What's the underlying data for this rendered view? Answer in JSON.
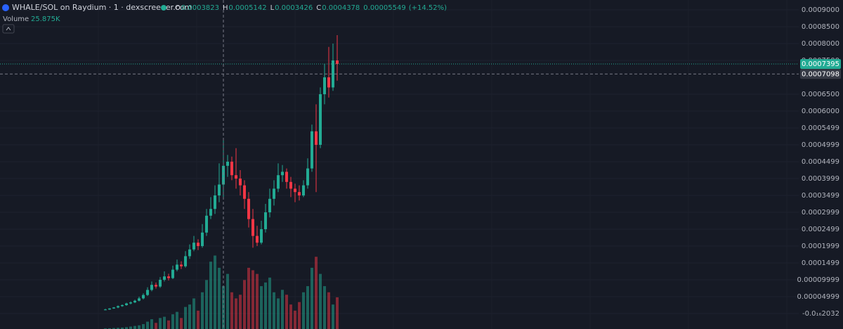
{
  "header": {
    "title": "WHALE/SOL on Raydium · 1 · dexscreener.com",
    "legend_labels": [
      "O",
      "H",
      "L",
      "C"
    ],
    "change": 5.549e-05,
    "change_label": "(+14.52%)",
    "volume_title": "Volume",
    "volume_label": "25.875K"
  },
  "chart_data": {
    "type": "candlestick",
    "ylim": [
      -4.58e-05,
      0.00092917
    ],
    "yticks": [
      {
        "value": 0.0009,
        "label": "0.0009000"
      },
      {
        "value": 0.00085,
        "label": "0.0008500"
      },
      {
        "value": 0.0008,
        "label": "0.0008000"
      },
      {
        "value": 0.00075,
        "label": "0.0007500"
      },
      {
        "value": 0.00065,
        "label": "0.0006500"
      },
      {
        "value": 0.0006,
        "label": "0.0006000"
      },
      {
        "value": 0.0005499,
        "label": "0.0005499"
      },
      {
        "value": 0.0004999,
        "label": "0.0004999"
      },
      {
        "value": 0.0004499,
        "label": "0.0004499"
      },
      {
        "value": 0.0003999,
        "label": "0.0003999"
      },
      {
        "value": 0.0003499,
        "label": "0.0003499"
      },
      {
        "value": 0.0002999,
        "label": "0.0002999"
      },
      {
        "value": 0.0002499,
        "label": "0.0002499"
      },
      {
        "value": 0.0001999,
        "label": "0.0001999"
      },
      {
        "value": 0.0001499,
        "label": "0.0001499"
      },
      {
        "value": 9.999e-05,
        "label": "0.00009999"
      },
      {
        "value": 4.999e-05,
        "label": "0.00004999"
      },
      {
        "value": -2.032e-17,
        "label": "-0.0₁₆2032"
      }
    ],
    "up_color": "#22ab94",
    "down_color": "#f23645",
    "grid": true,
    "last_price": 0.0007395,
    "crosshair_price": 0.0007098,
    "crosshair_index": 28,
    "candles": [
      [
        1.1e-05,
        1.4e-05,
        1e-05,
        1.2e-05
      ],
      [
        1.2e-05,
        1.6e-05,
        1.1e-05,
        1.5e-05
      ],
      [
        1.5e-05,
        1.9e-05,
        1.4e-05,
        1.8e-05
      ],
      [
        1.8e-05,
        2.4e-05,
        1.6e-05,
        2.2e-05
      ],
      [
        2.2e-05,
        2.7e-05,
        2e-05,
        2.5e-05
      ],
      [
        2.5e-05,
        3.2e-05,
        2.3e-05,
        3e-05
      ],
      [
        3e-05,
        3.6e-05,
        2.7e-05,
        3.3e-05
      ],
      [
        3.3e-05,
        4.1e-05,
        3.1e-05,
        3.8e-05
      ],
      [
        3.8e-05,
        5e-05,
        3.6e-05,
        4.5e-05
      ],
      [
        4.5e-05,
        6e-05,
        4.2e-05,
        5.5e-05
      ],
      [
        5.5e-05,
        7.8e-05,
        5.2e-05,
        7e-05
      ],
      [
        7e-05,
        9.5e-05,
        6.6e-05,
        8.5e-05
      ],
      [
        8.5e-05,
        9.2e-05,
        7.4e-05,
        8e-05
      ],
      [
        8e-05,
        0.000108,
        7.6e-05,
        0.0001
      ],
      [
        0.0001,
        0.000125,
        9.5e-05,
        0.00011
      ],
      [
        0.00011,
        0.000118,
        9.8e-05,
        0.000105
      ],
      [
        0.000105,
        0.000142,
        0.000102,
        0.00013
      ],
      [
        0.00013,
        0.00016,
        0.000125,
        0.000145
      ],
      [
        0.000145,
        0.000155,
        0.000132,
        0.00014
      ],
      [
        0.00014,
        0.000185,
        0.000136,
        0.00017
      ],
      [
        0.00017,
        0.000205,
        0.000162,
        0.00019
      ],
      [
        0.00019,
        0.00023,
        0.000185,
        0.00021
      ],
      [
        0.00021,
        0.00022,
        0.000188,
        0.0002
      ],
      [
        0.0002,
        0.000265,
        0.000195,
        0.00024
      ],
      [
        0.00024,
        0.00031,
        0.00023,
        0.00029
      ],
      [
        0.00029,
        0.000345,
        0.00028,
        0.00031
      ],
      [
        0.00031,
        0.00038,
        0.000295,
        0.00035
      ],
      [
        0.00035,
        0.000445,
        0.00033,
        0.0003823
      ],
      [
        0.0003823,
        0.0005142,
        0.0003426,
        0.0004378
      ],
      [
        0.0004378,
        0.00047,
        0.000405,
        0.00045
      ],
      [
        0.00045,
        0.000465,
        0.000395,
        0.00041
      ],
      [
        0.00041,
        0.00049,
        0.00037,
        0.0004
      ],
      [
        0.0004,
        0.000425,
        0.00035,
        0.00038
      ],
      [
        0.00038,
        0.000395,
        0.00031,
        0.00034
      ],
      [
        0.00034,
        0.00036,
        0.000255,
        0.00028
      ],
      [
        0.00028,
        0.00031,
        0.000195,
        0.00023
      ],
      [
        0.00023,
        0.00026,
        0.0002,
        0.00021
      ],
      [
        0.00021,
        0.000275,
        0.000205,
        0.00025
      ],
      [
        0.00025,
        0.000325,
        0.00024,
        0.0003
      ],
      [
        0.0003,
        0.00037,
        0.000285,
        0.00034
      ],
      [
        0.00034,
        0.000395,
        0.00032,
        0.00037
      ],
      [
        0.00037,
        0.000445,
        0.00036,
        0.00041
      ],
      [
        0.00041,
        0.00044,
        0.00039,
        0.00042
      ],
      [
        0.00042,
        0.00043,
        0.00037,
        0.00039
      ],
      [
        0.00039,
        0.000405,
        0.000345,
        0.00037
      ],
      [
        0.00037,
        0.000385,
        0.00033,
        0.00036
      ],
      [
        0.00036,
        0.00038,
        0.000335,
        0.00035
      ],
      [
        0.00035,
        0.000395,
        0.000345,
        0.00038
      ],
      [
        0.00038,
        0.00046,
        0.00037,
        0.00043
      ],
      [
        0.00043,
        0.00056,
        0.00042,
        0.00054
      ],
      [
        0.00054,
        0.00062,
        0.00036,
        0.0005
      ],
      [
        0.0005,
        0.00067,
        0.00049,
        0.00065
      ],
      [
        0.00065,
        0.00074,
        0.00062,
        0.0007
      ],
      [
        0.0007,
        0.00079,
        0.00064,
        0.00067
      ],
      [
        0.00067,
        0.0008,
        0.00066,
        0.00075
      ],
      [
        0.00075,
        0.000825,
        0.00069,
        0.0007395
      ]
    ],
    "vlim": [
      0,
      120
    ],
    "volumes": [
      0.5,
      0.6,
      0.8,
      1,
      1.2,
      1.5,
      2,
      2.5,
      3,
      4,
      6,
      8,
      5,
      9,
      10,
      7,
      12,
      14,
      9,
      18,
      20,
      25,
      15,
      30,
      40,
      55,
      60,
      50,
      35,
      45,
      30,
      25,
      28,
      40,
      50,
      48,
      45,
      35,
      38,
      42,
      30,
      25,
      32,
      28,
      20,
      15,
      22,
      30,
      35,
      50,
      59,
      45,
      35,
      30,
      20,
      25.875
    ]
  }
}
